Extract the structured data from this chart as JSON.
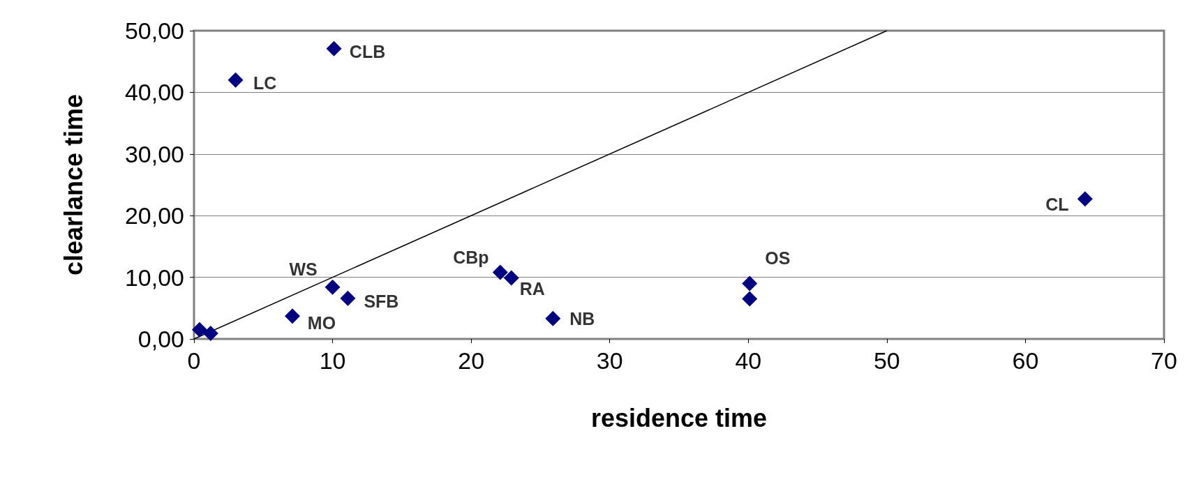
{
  "chart_data": {
    "type": "scatter",
    "xlabel": "residence time",
    "ylabel": "clearlance time",
    "xlim": [
      0,
      70
    ],
    "ylim": [
      0,
      50
    ],
    "xticks": [
      0,
      10,
      20,
      30,
      40,
      50,
      60,
      70
    ],
    "yticks": [
      {
        "value": 0,
        "label": "0,00"
      },
      {
        "value": 10,
        "label": "10,00"
      },
      {
        "value": 20,
        "label": "20,00"
      },
      {
        "value": 30,
        "label": "30,00"
      },
      {
        "value": 40,
        "label": "40,00"
      },
      {
        "value": 50,
        "label": "50,00"
      }
    ],
    "grid": "y",
    "marker": "diamond",
    "series": [
      {
        "color": "#000080",
        "x": [
          0.4,
          1.2,
          3,
          10.1,
          7.1,
          10,
          11.1,
          22.1,
          22.9,
          25.9,
          40.1,
          40.1,
          64.3
        ],
        "values": [
          1.5,
          0.9,
          42,
          47.1,
          3.7,
          8.4,
          6.6,
          10.8,
          9.9,
          3.3,
          9,
          6.5,
          22.7
        ]
      },
      {
        "type": "line",
        "color": "#000000",
        "marker": "none",
        "x": [
          0,
          50
        ],
        "values": [
          0,
          50
        ]
      }
    ],
    "annotations": [
      {
        "text": "LC",
        "x": 3,
        "y": 42
      },
      {
        "text": "CLB",
        "x": 10.1,
        "y": 47.1
      },
      {
        "text": "MO",
        "x": 7.1,
        "y": 3.7
      },
      {
        "text": "WS",
        "x": 10,
        "y": 8.4
      },
      {
        "text": "SFB",
        "x": 11.1,
        "y": 6.6
      },
      {
        "text": "CBp",
        "x": 22.1,
        "y": 10.8
      },
      {
        "text": "RA",
        "x": 22.9,
        "y": 9.9
      },
      {
        "text": "NB",
        "x": 25.9,
        "y": 3.3
      },
      {
        "text": "OS",
        "x": 40.1,
        "y": 9
      },
      {
        "text": "CL",
        "x": 64.3,
        "y": 22.7
      }
    ]
  }
}
